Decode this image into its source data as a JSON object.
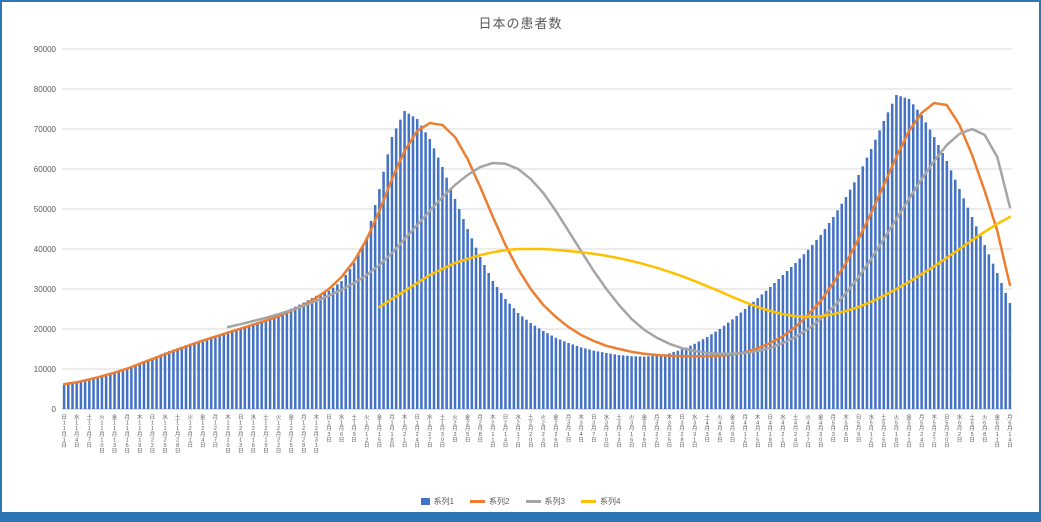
{
  "title": "日本の患者数",
  "axis": {
    "y_ticks": [
      "0",
      "10000",
      "20000",
      "30000",
      "40000",
      "50000",
      "60000",
      "70000",
      "80000",
      "90000"
    ]
  },
  "colors": {
    "bar": "#4472C4",
    "line2": "#ED7D31",
    "line3": "#A5A5A5",
    "line4": "#FFC000",
    "grid": "#D9D9D9",
    "axis_line": "#BFBFBF",
    "text": "#595959",
    "frame": "#2E75B6"
  },
  "chart_data": {
    "type": "combo (bar + line)",
    "title": "日本の患者数",
    "xlabel": "",
    "ylabel": "",
    "ylim": [
      0,
      90000
    ],
    "grid": true,
    "legend_position": "bottom",
    "categories": [
      [
        "日",
        "11",
        "1"
      ],
      [
        "水",
        "11",
        "4"
      ],
      [
        "土",
        "11",
        "7"
      ],
      [
        "火",
        "11",
        "10"
      ],
      [
        "金",
        "11",
        "13"
      ],
      [
        "月",
        "11",
        "16"
      ],
      [
        "木",
        "11",
        "19"
      ],
      [
        "日",
        "11",
        "22"
      ],
      [
        "水",
        "11",
        "25"
      ],
      [
        "土",
        "11",
        "28"
      ],
      [
        "火",
        "12",
        "1"
      ],
      [
        "金",
        "12",
        "4"
      ],
      [
        "月",
        "12",
        "7"
      ],
      [
        "木",
        "12",
        "10"
      ],
      [
        "日",
        "12",
        "13"
      ],
      [
        "水",
        "12",
        "16"
      ],
      [
        "土",
        "12",
        "19"
      ],
      [
        "火",
        "12",
        "22"
      ],
      [
        "金",
        "12",
        "25"
      ],
      [
        "月",
        "12",
        "28"
      ],
      [
        "木",
        "12",
        "31"
      ],
      [
        "日",
        "1",
        "3"
      ],
      [
        "水",
        "1",
        "6"
      ],
      [
        "土",
        "1",
        "9"
      ],
      [
        "火",
        "1",
        "12"
      ],
      [
        "金",
        "1",
        "15"
      ],
      [
        "月",
        "1",
        "18"
      ],
      [
        "木",
        "1",
        "21"
      ],
      [
        "日",
        "1",
        "24"
      ],
      [
        "水",
        "1",
        "27"
      ],
      [
        "土",
        "1",
        "30"
      ],
      [
        "火",
        "2",
        "2"
      ],
      [
        "金",
        "2",
        "5"
      ],
      [
        "月",
        "2",
        "8"
      ],
      [
        "木",
        "2",
        "11"
      ],
      [
        "日",
        "2",
        "14"
      ],
      [
        "水",
        "2",
        "17"
      ],
      [
        "土",
        "2",
        "20"
      ],
      [
        "火",
        "2",
        "23"
      ],
      [
        "金",
        "2",
        "26"
      ],
      [
        "月",
        "3",
        "1"
      ],
      [
        "木",
        "3",
        "4"
      ],
      [
        "日",
        "3",
        "7"
      ],
      [
        "水",
        "3",
        "10"
      ],
      [
        "土",
        "3",
        "13"
      ],
      [
        "火",
        "3",
        "16"
      ],
      [
        "金",
        "3",
        "19"
      ],
      [
        "月",
        "3",
        "22"
      ],
      [
        "木",
        "3",
        "25"
      ],
      [
        "日",
        "3",
        "28"
      ],
      [
        "水",
        "3",
        "31"
      ],
      [
        "土",
        "4",
        "3"
      ],
      [
        "火",
        "4",
        "6"
      ],
      [
        "金",
        "4",
        "9"
      ],
      [
        "月",
        "4",
        "12"
      ],
      [
        "木",
        "4",
        "15"
      ],
      [
        "日",
        "4",
        "18"
      ],
      [
        "水",
        "4",
        "21"
      ],
      [
        "土",
        "4",
        "24"
      ],
      [
        "火",
        "4",
        "27"
      ],
      [
        "金",
        "4",
        "30"
      ],
      [
        "月",
        "5",
        "3"
      ],
      [
        "木",
        "5",
        "6"
      ],
      [
        "日",
        "5",
        "9"
      ],
      [
        "水",
        "5",
        "12"
      ],
      [
        "土",
        "5",
        "15"
      ],
      [
        "火",
        "5",
        "18"
      ],
      [
        "金",
        "5",
        "21"
      ],
      [
        "月",
        "5",
        "24"
      ],
      [
        "木",
        "5",
        "27"
      ],
      [
        "日",
        "5",
        "30"
      ],
      [
        "水",
        "6",
        "2"
      ],
      [
        "土",
        "6",
        "5"
      ],
      [
        "火",
        "6",
        "8"
      ],
      [
        "金",
        "6",
        "11"
      ],
      [
        "月",
        "6",
        "14"
      ]
    ],
    "series": [
      {
        "name": "系列1",
        "type": "bar",
        "color": "#4472C4",
        "values": [
          6000,
          6600,
          7300,
          8100,
          9200,
          10300,
          11600,
          12800,
          14100,
          15200,
          16300,
          17400,
          18200,
          19400,
          20300,
          21400,
          22400,
          23600,
          25100,
          26600,
          28300,
          29500,
          32000,
          36500,
          43000,
          55000,
          68000,
          74500,
          72500,
          67500,
          60500,
          52500,
          45000,
          38000,
          32000,
          27500,
          24000,
          21500,
          19500,
          17800,
          16500,
          15400,
          14600,
          14000,
          13500,
          13200,
          13100,
          13300,
          13900,
          14900,
          16300,
          18000,
          20000,
          22400,
          25000,
          27700,
          30500,
          33500,
          36500,
          39800,
          43500,
          48000,
          53000,
          58500,
          65000,
          72000,
          78500,
          77500,
          73500,
          68000,
          62000,
          55000,
          48000,
          41000,
          34000,
          26500
        ]
      },
      {
        "name": "系列2",
        "type": "line",
        "color": "#ED7D31",
        "values": [
          6200,
          6700,
          7400,
          8200,
          9100,
          10100,
          11300,
          12500,
          13700,
          14900,
          16000,
          17100,
          18100,
          19100,
          20100,
          21100,
          22100,
          23200,
          24500,
          26000,
          27800,
          30000,
          33000,
          37000,
          42500,
          49500,
          57500,
          64500,
          69500,
          71500,
          71000,
          68000,
          62500,
          55500,
          48000,
          41000,
          35000,
          30000,
          26000,
          23000,
          20500,
          18500,
          17000,
          15800,
          15000,
          14300,
          13800,
          13500,
          13300,
          13200,
          13200,
          13200,
          13300,
          13600,
          14200,
          15200,
          16500,
          18200,
          20500,
          23500,
          27000,
          31500,
          36500,
          42500,
          49000,
          56000,
          63000,
          69500,
          74000,
          76500,
          76000,
          71000,
          63500,
          54500,
          44500,
          31000
        ]
      },
      {
        "name": "系列3",
        "type": "line",
        "color": "#A5A5A5",
        "values": [
          null,
          null,
          null,
          null,
          null,
          null,
          null,
          null,
          null,
          null,
          null,
          null,
          null,
          20500,
          21200,
          22000,
          22800,
          23700,
          24700,
          25800,
          27000,
          28300,
          29800,
          31500,
          33500,
          36000,
          39000,
          42500,
          46000,
          49500,
          53000,
          56000,
          58500,
          60500,
          61500,
          61300,
          60000,
          57500,
          54000,
          49500,
          44500,
          39500,
          34500,
          30000,
          26000,
          22500,
          19800,
          17800,
          16300,
          15200,
          14500,
          14000,
          13800,
          13800,
          14000,
          14500,
          15300,
          16500,
          18000,
          20000,
          22500,
          25500,
          29000,
          33000,
          37500,
          42500,
          47500,
          52500,
          57500,
          62000,
          66000,
          68800,
          70000,
          68500,
          63000,
          50500
        ]
      },
      {
        "name": "系列4",
        "type": "line",
        "color": "#FFC000",
        "values": [
          null,
          null,
          null,
          null,
          null,
          null,
          null,
          null,
          null,
          null,
          null,
          null,
          null,
          null,
          null,
          null,
          null,
          null,
          null,
          null,
          null,
          null,
          null,
          null,
          null,
          25500,
          27500,
          29500,
          31500,
          33500,
          35000,
          36500,
          37500,
          38500,
          39200,
          39700,
          40000,
          40000,
          40000,
          39800,
          39500,
          39200,
          38800,
          38300,
          37700,
          37000,
          36200,
          35300,
          34300,
          33200,
          32000,
          30700,
          29400,
          28000,
          26700,
          25500,
          24500,
          23700,
          23200,
          23000,
          23200,
          23700,
          24500,
          25500,
          26800,
          28300,
          30000,
          31800,
          33700,
          35700,
          37800,
          40000,
          42200,
          44300,
          46300,
          48000
        ]
      }
    ]
  }
}
